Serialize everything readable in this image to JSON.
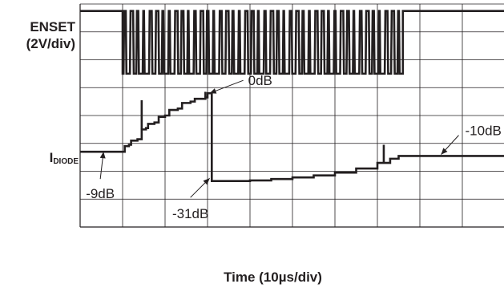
{
  "chart_data": {
    "type": "line",
    "title": "",
    "xlabel": "Time (10µs/div)",
    "grid": true,
    "divisions": {
      "x": 10,
      "y": 8
    },
    "color": "#231f20",
    "channels": [
      {
        "name": "ENSET",
        "label_line1": "ENSET",
        "label_line2": "(2V/div)",
        "scale": "2V/div",
        "levels": {
          "high_div": 7.75,
          "low_div": 5.5
        },
        "burst_start_div": 1.0,
        "burst_end_div": 7.6,
        "idle_state": "high"
      },
      {
        "name": "IDIODE",
        "label_main": "I",
        "label_sub": "DIODE",
        "trace_div": [
          [
            0,
            2.7
          ],
          [
            1.0,
            2.7
          ],
          [
            1.05,
            2.9
          ],
          [
            1.15,
            2.95
          ],
          [
            1.2,
            3.1
          ],
          [
            1.35,
            3.15
          ],
          [
            1.45,
            3.5
          ],
          [
            1.55,
            3.55
          ],
          [
            1.6,
            3.7
          ],
          [
            1.75,
            3.75
          ],
          [
            1.85,
            3.95
          ],
          [
            2.0,
            4.0
          ],
          [
            2.1,
            4.2
          ],
          [
            2.3,
            4.25
          ],
          [
            2.4,
            4.45
          ],
          [
            2.6,
            4.5
          ],
          [
            2.7,
            4.6
          ],
          [
            2.95,
            4.65
          ],
          [
            3.0,
            4.8
          ],
          [
            3.05,
            4.8
          ],
          [
            3.1,
            1.65
          ],
          [
            3.4,
            1.65
          ],
          [
            4.0,
            1.67
          ],
          [
            4.5,
            1.72
          ],
          [
            5.0,
            1.78
          ],
          [
            5.5,
            1.85
          ],
          [
            6.0,
            1.95
          ],
          [
            6.5,
            2.1
          ],
          [
            7.0,
            2.3
          ],
          [
            7.3,
            2.45
          ],
          [
            7.5,
            2.55
          ],
          [
            10.0,
            2.55
          ]
        ],
        "spikes_div": [
          [
            1.45,
            4.55
          ],
          [
            2.95,
            4.85
          ],
          [
            7.15,
            2.95
          ]
        ]
      }
    ],
    "annotations": [
      {
        "text": "0dB",
        "anchor_div": [
          3.05,
          4.8
        ],
        "label_pos": "right-above"
      },
      {
        "text": "-9dB",
        "anchor_div": [
          0.55,
          2.7
        ],
        "label_pos": "below"
      },
      {
        "text": "-31dB",
        "anchor_div": [
          3.05,
          1.75
        ],
        "label_pos": "below-left"
      },
      {
        "text": "-10dB",
        "anchor_div": [
          8.5,
          2.6
        ],
        "label_pos": "above-right"
      }
    ]
  }
}
